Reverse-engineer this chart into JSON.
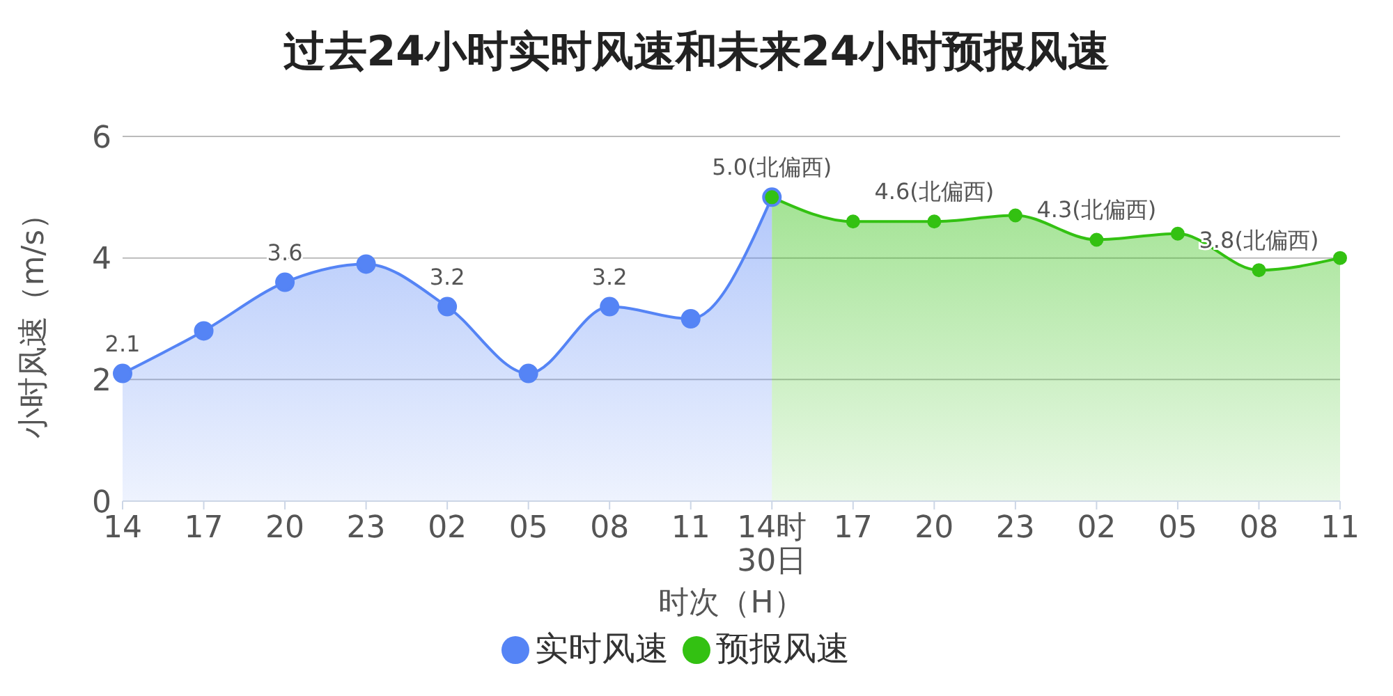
{
  "chart_data": {
    "type": "area",
    "title": "过去24小时实时风速和未来24小时预报风速",
    "xlabel": "时次（H）",
    "ylabel": "小时风速（m/s）",
    "categories": [
      "14",
      "17",
      "20",
      "23",
      "02",
      "05",
      "08",
      "11",
      "14时\n30日",
      "17",
      "20",
      "23",
      "02",
      "05",
      "08",
      "11"
    ],
    "series": [
      {
        "name": "实时风速",
        "color": "#5584f5",
        "values": [
          2.1,
          2.8,
          3.6,
          3.9,
          3.2,
          2.1,
          3.2,
          3.0,
          5.0,
          null,
          null,
          null,
          null,
          null,
          null,
          null
        ],
        "value_labels": [
          "2.1",
          null,
          "3.6",
          null,
          "3.2",
          null,
          "3.2",
          null,
          null,
          null,
          null,
          null,
          null,
          null,
          null,
          null
        ]
      },
      {
        "name": "预报风速",
        "color": "#33c112",
        "values": [
          null,
          null,
          null,
          null,
          null,
          null,
          null,
          null,
          5.0,
          4.6,
          4.6,
          4.7,
          4.3,
          4.4,
          3.8,
          4.0
        ],
        "value_labels": [
          null,
          null,
          null,
          null,
          null,
          null,
          null,
          null,
          "5.0(北偏西)",
          null,
          "4.6(北偏西)",
          null,
          "4.3(北偏西)",
          null,
          "3.8(北偏西)",
          null
        ]
      }
    ],
    "ylim": [
      0,
      6
    ],
    "yticks": [
      0,
      2,
      4,
      6
    ],
    "grid": "y",
    "legend": "bottom",
    "marker": "circle"
  }
}
